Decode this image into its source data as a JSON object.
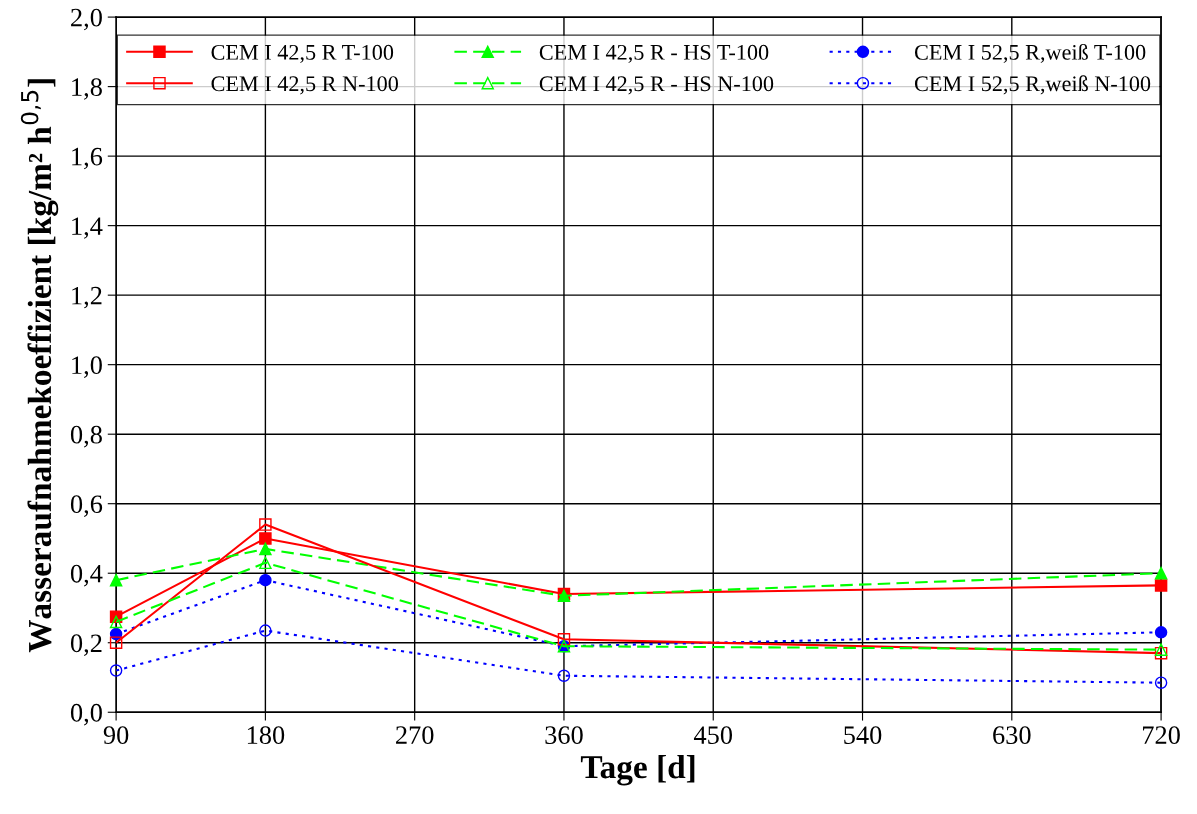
{
  "chart_data": {
    "type": "line",
    "xlabel": "Tage [d]",
    "ylabel": "Wasseraufnahmekoeffizient [kg/m² h$^{0,5}$]",
    "x": [
      90,
      180,
      360,
      720
    ],
    "xlim": [
      90,
      720
    ],
    "xticks": [
      90,
      180,
      270,
      360,
      450,
      540,
      630,
      720
    ],
    "ylim": [
      0,
      2.0
    ],
    "yticks": [
      {
        "value": 0,
        "label": "0,0"
      },
      {
        "value": 0.2,
        "label": "0,2"
      },
      {
        "value": 0.4,
        "label": "0,4"
      },
      {
        "value": 0.6,
        "label": "0,6"
      },
      {
        "value": 0.8,
        "label": "0,8"
      },
      {
        "value": 1.0,
        "label": "1,0"
      },
      {
        "value": 1.2,
        "label": "1,2"
      },
      {
        "value": 1.4,
        "label": "1,4"
      },
      {
        "value": 1.6,
        "label": "1,6"
      },
      {
        "value": 1.8,
        "label": "1,8"
      },
      {
        "value": 2.0,
        "label": "2,0"
      }
    ],
    "grid": true,
    "legend": "top",
    "series": [
      {
        "name": "CEM I 42,5 R T-100",
        "color": "#ff0000",
        "values": [
          0.275,
          0.5,
          0.34,
          0.365
        ],
        "marker": "square",
        "line_style": "solid"
      },
      {
        "name": "CEM I 42,5 R N-100",
        "color": "#ff0000",
        "values": [
          0.2,
          0.54,
          0.21,
          0.17
        ],
        "marker": "square",
        "line_style": "solid"
      },
      {
        "name": "CEM I 42,5 R - HS T-100",
        "color": "#00ff00",
        "values": [
          0.38,
          0.47,
          0.335,
          0.4
        ],
        "marker": "triangle",
        "line_style": "dashed"
      },
      {
        "name": "CEM I 42,5 R - HS N-100",
        "color": "#00ff00",
        "values": [
          0.26,
          0.43,
          0.19,
          0.18
        ],
        "marker": "triangle",
        "line_style": "dashed"
      },
      {
        "name": "CEM I 52,5 R,weiß T-100",
        "color": "#0000ff",
        "values": [
          0.225,
          0.38,
          0.19,
          0.23
        ],
        "marker": "circle",
        "line_style": "dotted"
      },
      {
        "name": "CEM I 52,5 R,weiß N-100",
        "color": "#0000ff",
        "values": [
          0.12,
          0.235,
          0.105,
          0.085
        ],
        "marker": "circle",
        "line_style": "dotted"
      }
    ]
  }
}
